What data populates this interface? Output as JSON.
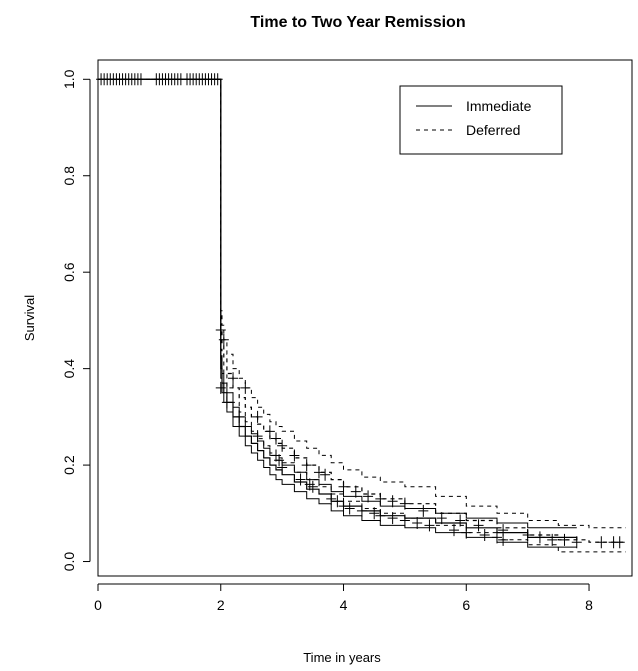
{
  "chart_data": {
    "type": "line",
    "title": "Time to Two Year Remission",
    "xlabel": "Time in years",
    "ylabel": "Survival",
    "xlim": [
      0,
      8.7
    ],
    "ylim": [
      -0.03,
      1.04
    ],
    "x_ticks": [
      0,
      2,
      4,
      6,
      8
    ],
    "x_tick_labels": [
      "0",
      "2",
      "4",
      "6",
      "8"
    ],
    "y_ticks": [
      0.0,
      0.2,
      0.4,
      0.6,
      0.8,
      1.0
    ],
    "y_tick_labels": [
      "0.0",
      "0.2",
      "0.4",
      "0.6",
      "0.8",
      "1.0"
    ],
    "grid": false,
    "legend_position": "top-right",
    "series": [
      {
        "name": "Immediate",
        "line_style": "solid",
        "x": [
          0,
          1.99,
          2.0,
          2.02,
          2.05,
          2.1,
          2.2,
          2.3,
          2.4,
          2.5,
          2.6,
          2.7,
          2.8,
          2.9,
          3.0,
          3.2,
          3.4,
          3.6,
          3.8,
          4.0,
          4.3,
          4.6,
          5.0,
          5.5,
          6.0,
          6.5,
          7.0,
          7.8
        ],
        "y": [
          1.0,
          1.0,
          0.4,
          0.37,
          0.35,
          0.33,
          0.3,
          0.28,
          0.26,
          0.245,
          0.23,
          0.215,
          0.2,
          0.19,
          0.18,
          0.165,
          0.15,
          0.14,
          0.125,
          0.115,
          0.105,
          0.095,
          0.09,
          0.08,
          0.07,
          0.06,
          0.05,
          0.045
        ],
        "ci_lower": [
          1.0,
          1.0,
          0.38,
          0.35,
          0.33,
          0.31,
          0.28,
          0.26,
          0.24,
          0.225,
          0.21,
          0.195,
          0.18,
          0.17,
          0.16,
          0.145,
          0.13,
          0.12,
          0.105,
          0.095,
          0.085,
          0.075,
          0.07,
          0.06,
          0.05,
          0.04,
          0.03,
          0.03
        ],
        "ci_upper": [
          1.0,
          1.0,
          0.42,
          0.39,
          0.37,
          0.35,
          0.32,
          0.3,
          0.28,
          0.265,
          0.25,
          0.235,
          0.22,
          0.21,
          0.2,
          0.185,
          0.17,
          0.16,
          0.145,
          0.135,
          0.125,
          0.115,
          0.11,
          0.1,
          0.09,
          0.08,
          0.07,
          0.07
        ],
        "censor_x": [
          2.0,
          2.1,
          2.3,
          2.6,
          2.9,
          2.95,
          3.0,
          3.3,
          3.45,
          3.5,
          3.8,
          3.9,
          4.0,
          4.1,
          4.3,
          4.5,
          4.6,
          4.8,
          5.0,
          5.2,
          5.4,
          5.8,
          6.0,
          6.3,
          6.5,
          6.6
        ],
        "censor_y": [
          0.36,
          0.33,
          0.3,
          0.26,
          0.22,
          0.21,
          0.195,
          0.17,
          0.16,
          0.155,
          0.13,
          0.125,
          0.115,
          0.11,
          0.105,
          0.1,
          0.095,
          0.09,
          0.085,
          0.08,
          0.075,
          0.065,
          0.06,
          0.055,
          0.05,
          0.045
        ]
      },
      {
        "name": "Deferred",
        "line_style": "dashed",
        "x": [
          0,
          1.99,
          2.0,
          2.02,
          2.05,
          2.1,
          2.2,
          2.3,
          2.4,
          2.5,
          2.6,
          2.7,
          2.8,
          2.9,
          3.0,
          3.2,
          3.4,
          3.6,
          3.8,
          4.0,
          4.3,
          4.6,
          5.0,
          5.5,
          6.0,
          6.5,
          7.0,
          7.5,
          8.0,
          8.6
        ],
        "y": [
          1.0,
          1.0,
          0.48,
          0.45,
          0.42,
          0.39,
          0.36,
          0.34,
          0.32,
          0.3,
          0.285,
          0.27,
          0.255,
          0.245,
          0.235,
          0.215,
          0.2,
          0.185,
          0.17,
          0.155,
          0.14,
          0.13,
          0.12,
          0.1,
          0.085,
          0.07,
          0.055,
          0.045,
          0.04,
          0.04
        ],
        "ci_lower": [
          1.0,
          1.0,
          0.44,
          0.42,
          0.39,
          0.36,
          0.33,
          0.31,
          0.29,
          0.27,
          0.255,
          0.24,
          0.225,
          0.215,
          0.205,
          0.185,
          0.17,
          0.155,
          0.14,
          0.125,
          0.11,
          0.1,
          0.09,
          0.075,
          0.06,
          0.045,
          0.035,
          0.02,
          0.02,
          0.02
        ],
        "ci_upper": [
          1.0,
          1.0,
          0.52,
          0.49,
          0.46,
          0.43,
          0.4,
          0.38,
          0.36,
          0.34,
          0.32,
          0.305,
          0.29,
          0.28,
          0.27,
          0.25,
          0.235,
          0.22,
          0.205,
          0.19,
          0.175,
          0.165,
          0.155,
          0.135,
          0.115,
          0.1,
          0.085,
          0.075,
          0.07,
          0.07
        ],
        "censor_x": [
          2.0,
          2.05,
          2.2,
          2.4,
          2.6,
          2.8,
          2.9,
          3.0,
          3.2,
          3.4,
          3.6,
          3.7,
          4.0,
          4.2,
          4.4,
          4.6,
          4.8,
          5.0,
          5.3,
          5.6,
          5.9,
          6.2,
          6.6,
          7.0,
          7.2,
          7.4,
          7.6,
          7.8,
          8.2,
          8.4,
          8.5
        ],
        "censor_y": [
          0.48,
          0.46,
          0.38,
          0.36,
          0.3,
          0.27,
          0.255,
          0.24,
          0.22,
          0.2,
          0.185,
          0.18,
          0.155,
          0.145,
          0.135,
          0.13,
          0.125,
          0.12,
          0.105,
          0.09,
          0.085,
          0.075,
          0.065,
          0.055,
          0.05,
          0.045,
          0.045,
          0.04,
          0.04,
          0.04,
          0.04
        ]
      }
    ],
    "early_censor_x": [
      0.05,
      0.1,
      0.15,
      0.2,
      0.25,
      0.3,
      0.35,
      0.4,
      0.45,
      0.5,
      0.55,
      0.6,
      0.65,
      0.7,
      0.95,
      1.0,
      1.05,
      1.1,
      1.15,
      1.2,
      1.25,
      1.3,
      1.35,
      1.45,
      1.5,
      1.55,
      1.6,
      1.65,
      1.7,
      1.75,
      1.8,
      1.85,
      1.9,
      1.95
    ]
  }
}
